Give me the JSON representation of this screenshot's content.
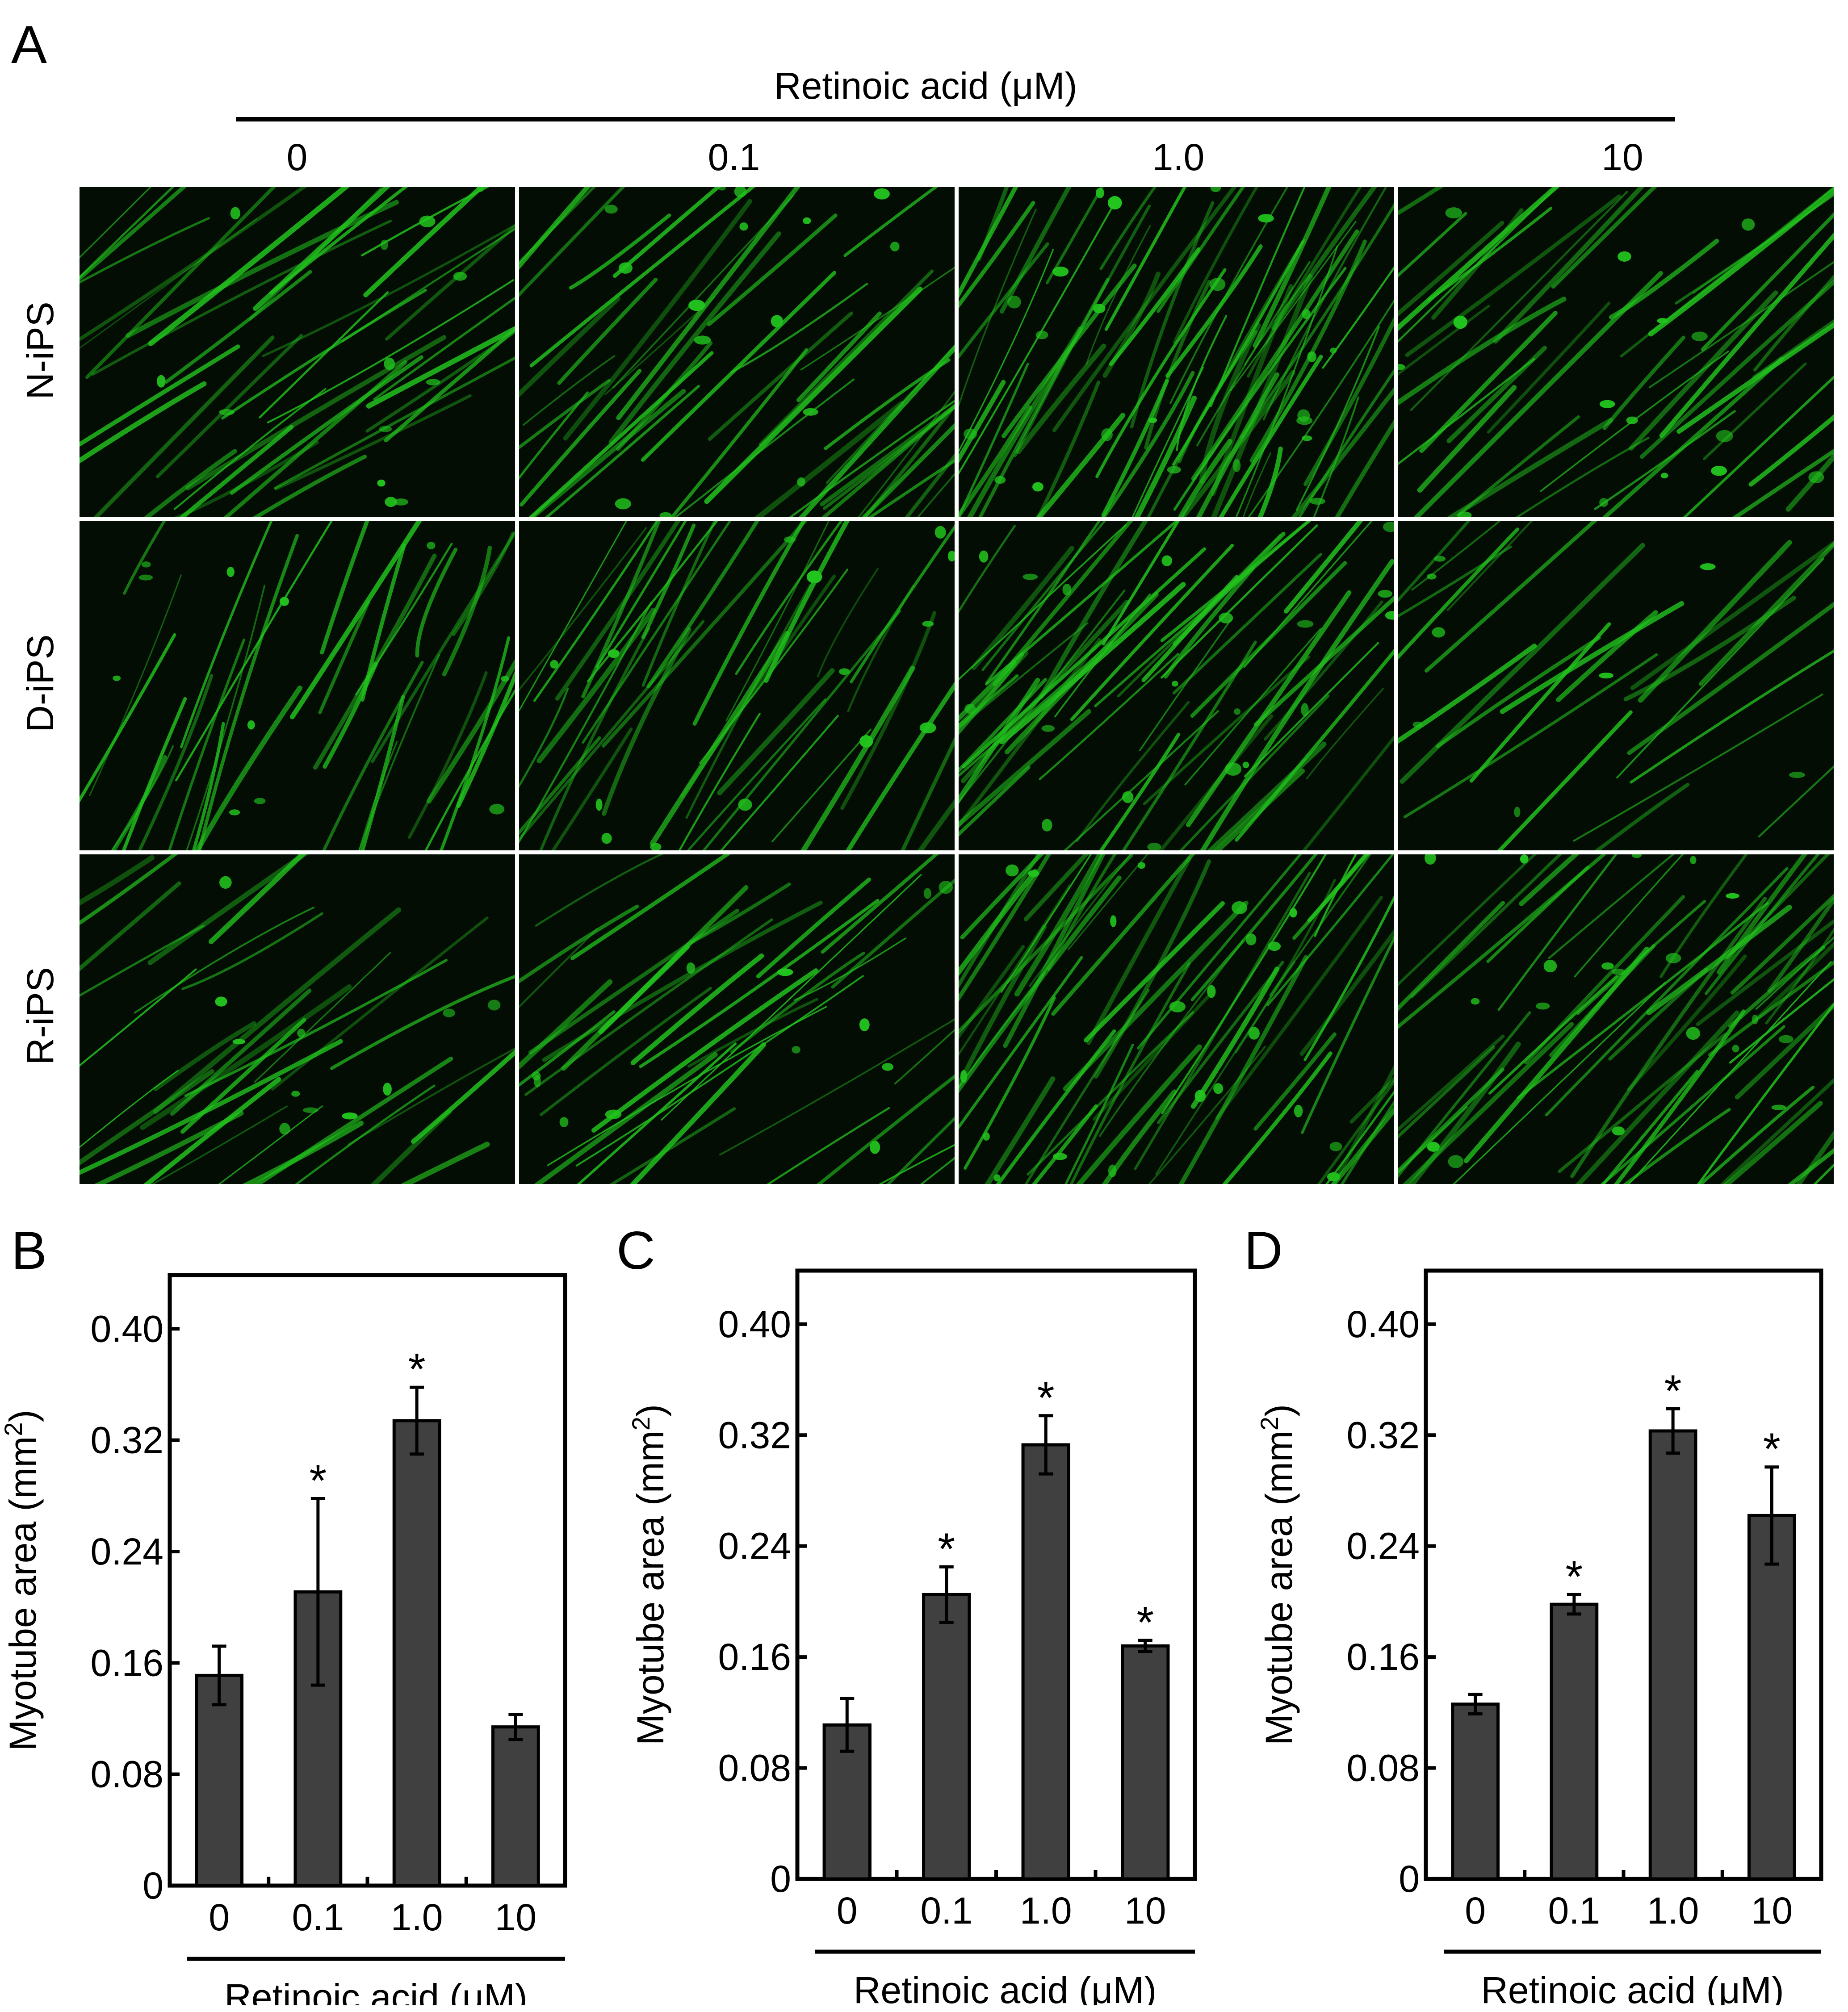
{
  "panel_a": {
    "letter": "A",
    "header_title": "Retinoic acid (μM)",
    "concentrations": [
      "0",
      "0.1",
      "1.0",
      "10"
    ],
    "rows": [
      "N-iPS",
      "D-iPS",
      "R-iPS"
    ],
    "stain_color": "#22c41e"
  },
  "chart_data": [
    {
      "panel": "B",
      "type": "bar",
      "categories": [
        "0",
        "0.1",
        "1.0",
        "10"
      ],
      "values": [
        0.151,
        0.211,
        0.334,
        0.114
      ],
      "errors": [
        0.021,
        0.067,
        0.024,
        0.009
      ],
      "significant": [
        false,
        true,
        true,
        false
      ],
      "significance_marker": "*",
      "ylabel": "Myotube area (mm",
      "ylabel_sup": "2",
      "ylabel_end": ")",
      "xlabel": "Retinoic acid (μM)",
      "ylim": [
        0,
        0.4
      ],
      "yticks": [
        "0",
        "0.08",
        "0.16",
        "0.24",
        "0.32",
        "0.40"
      ],
      "bar_color": "#404040"
    },
    {
      "panel": "C",
      "type": "bar",
      "categories": [
        "0",
        "0.1",
        "1.0",
        "10"
      ],
      "values": [
        0.111,
        0.205,
        0.313,
        0.168
      ],
      "errors": [
        0.019,
        0.02,
        0.021,
        0.004
      ],
      "significant": [
        false,
        true,
        true,
        true
      ],
      "significance_marker": "*",
      "ylabel": "Myotube area (mm",
      "ylabel_sup": "2",
      "ylabel_end": ")",
      "xlabel": "Retinoic acid (μM)",
      "ylim": [
        0,
        0.4
      ],
      "yticks": [
        "0",
        "0.08",
        "0.16",
        "0.24",
        "0.32",
        "0.40"
      ],
      "bar_color": "#404040"
    },
    {
      "panel": "D",
      "type": "bar",
      "categories": [
        "0",
        "0.1",
        "1.0",
        "10"
      ],
      "values": [
        0.126,
        0.198,
        0.323,
        0.262
      ],
      "errors": [
        0.007,
        0.007,
        0.016,
        0.035
      ],
      "significant": [
        false,
        true,
        true,
        true
      ],
      "significance_marker": "*",
      "ylabel": "Myotube area (mm",
      "ylabel_sup": "2",
      "ylabel_end": ")",
      "xlabel": "Retinoic acid (μM)",
      "ylim": [
        0,
        0.4
      ],
      "yticks": [
        "0",
        "0.08",
        "0.16",
        "0.24",
        "0.32",
        "0.40"
      ],
      "bar_color": "#404040"
    }
  ]
}
